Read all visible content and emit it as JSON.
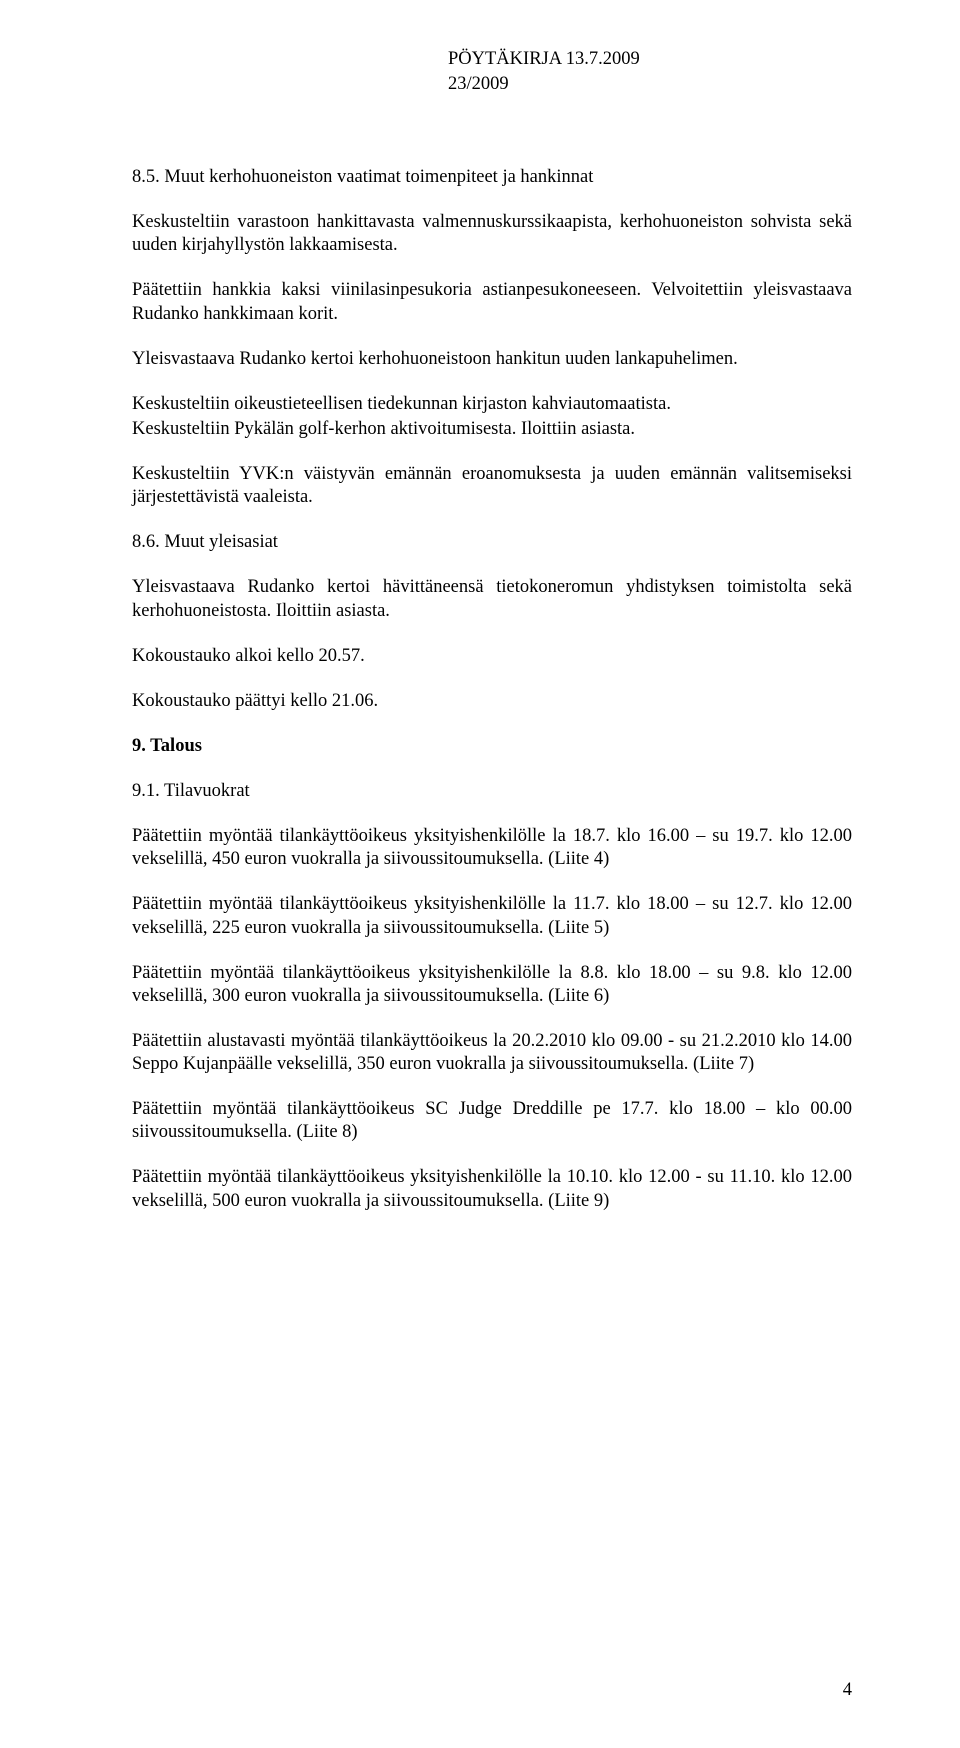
{
  "header": {
    "line1": "PÖYTÄKIRJA 13.7.2009",
    "line2": "23/2009"
  },
  "p": {
    "s85_title": "8.5. Muut kerhohuoneiston vaatimat toimenpiteet ja hankinnat",
    "s85_p1": "Keskusteltiin varastoon hankittavasta valmennuskurssikaapista, kerhohuoneiston sohvista sekä uuden kirjahyllystön lakkaamisesta.",
    "s85_p2": "Päätettiin hankkia kaksi viinilasinpesukoria astianpesukoneeseen. Velvoitettiin yleisvastaava Rudanko hankkimaan korit.",
    "s85_p3": "Yleisvastaava Rudanko kertoi kerhohuoneistoon hankitun uuden lankapuhelimen.",
    "s85_p4a": "Keskusteltiin oikeustieteellisen tiedekunnan kirjaston kahviautomaatista.",
    "s85_p4b": "Keskusteltiin Pykälän golf-kerhon aktivoitumisesta. Iloittiin asiasta.",
    "s85_p5": "Keskusteltiin YVK:n väistyvän emännän eroanomuksesta ja uuden emännän valitsemiseksi järjestettävistä vaaleista.",
    "s86_title": "8.6. Muut yleisasiat",
    "s86_p1": "Yleisvastaava Rudanko kertoi hävittäneensä tietokoneromun yhdistyksen toimistolta sekä kerhohuoneistosta. Iloittiin asiasta.",
    "s86_p2": "Kokoustauko alkoi kello 20.57.",
    "s86_p3": "Kokoustauko päättyi kello 21.06.",
    "s9_title": "9. Talous",
    "s91_title": "9.1. Tilavuokrat",
    "s91_p1": "Päätettiin myöntää tilankäyttöoikeus yksityishenkilölle la 18.7. klo 16.00 – su 19.7. klo 12.00 vekselillä, 450 euron vuokralla ja siivoussitoumuksella. (Liite 4)",
    "s91_p2": "Päätettiin myöntää tilankäyttöoikeus yksityishenkilölle la 11.7. klo 18.00 – su 12.7. klo 12.00 vekselillä, 225 euron vuokralla ja siivoussitoumuksella. (Liite 5)",
    "s91_p3": "Päätettiin myöntää tilankäyttöoikeus yksityishenkilölle la 8.8. klo 18.00 – su 9.8. klo 12.00 vekselillä, 300 euron vuokralla ja siivoussitoumuksella. (Liite 6)",
    "s91_p4": "Päätettiin alustavasti myöntää tilankäyttöoikeus la 20.2.2010 klo 09.00 - su 21.2.2010 klo 14.00 Seppo Kujanpäälle vekselillä, 350 euron vuokralla ja siivoussitoumuksella. (Liite 7)",
    "s91_p5": "Päätettiin myöntää tilankäyttöoikeus SC Judge Dreddille pe 17.7. klo 18.00 – klo 00.00 siivoussitoumuksella. (Liite 8)",
    "s91_p6": "Päätettiin myöntää tilankäyttöoikeus yksityishenkilölle la 10.10. klo 12.00 - su 11.10. klo 12.00 vekselillä, 500 euron vuokralla ja siivoussitoumuksella. (Liite 9)"
  },
  "page_number": "4",
  "style": {
    "font_family": "Times New Roman",
    "font_size_pt": 14,
    "text_color": "#000000",
    "background_color": "#ffffff"
  }
}
